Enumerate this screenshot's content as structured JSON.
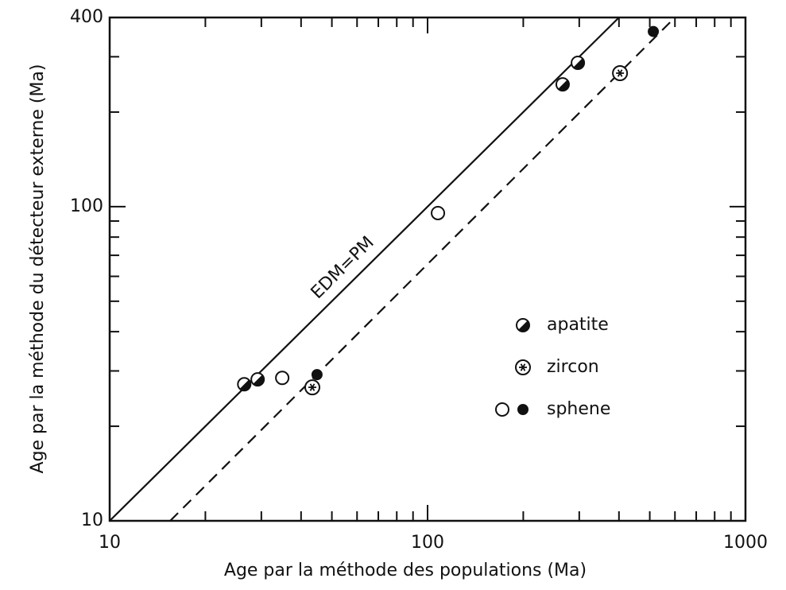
{
  "chart_data": {
    "type": "scatter",
    "x_label": "Age par la méthode des populations  (Ma)",
    "y_label": "Age par la méthode du détecteur externe (Ma)",
    "log_x": true,
    "log_y": true,
    "xlim": [
      10,
      1000
    ],
    "ylim": [
      10,
      400
    ],
    "xticks": [
      10,
      100,
      1000
    ],
    "xminorticks": [
      20,
      30,
      40,
      50,
      60,
      70,
      80,
      90,
      200,
      300,
      400,
      500,
      600,
      700,
      800,
      900
    ],
    "yticks": [
      10,
      100,
      400
    ],
    "yminorticks": [
      20,
      30,
      40,
      50,
      60,
      70,
      80,
      90,
      200,
      300
    ],
    "lines": [
      {
        "label": "EDM=PM",
        "style": "solid",
        "x": [
          10,
          400
        ],
        "values": [
          10,
          400
        ]
      },
      {
        "style": "dashed",
        "x": [
          15.5,
          600
        ],
        "values": [
          10,
          400
        ]
      }
    ],
    "series": [
      {
        "name": "apatite",
        "marker": "half",
        "x": [
          26.5,
          29.2,
          266,
          297
        ],
        "values": [
          27.2,
          28.2,
          245,
          287
        ]
      },
      {
        "name": "zircon",
        "marker": "star",
        "x": [
          43.4,
          403
        ],
        "values": [
          26.6,
          266
        ]
      },
      {
        "name": "sphene",
        "marker": "circle",
        "x": [
          34.9,
          107.8,
          44.9,
          513
        ],
        "values": [
          28.5,
          95.4,
          29.2,
          361
        ],
        "filled": [
          false,
          false,
          true,
          true
        ]
      }
    ]
  }
}
